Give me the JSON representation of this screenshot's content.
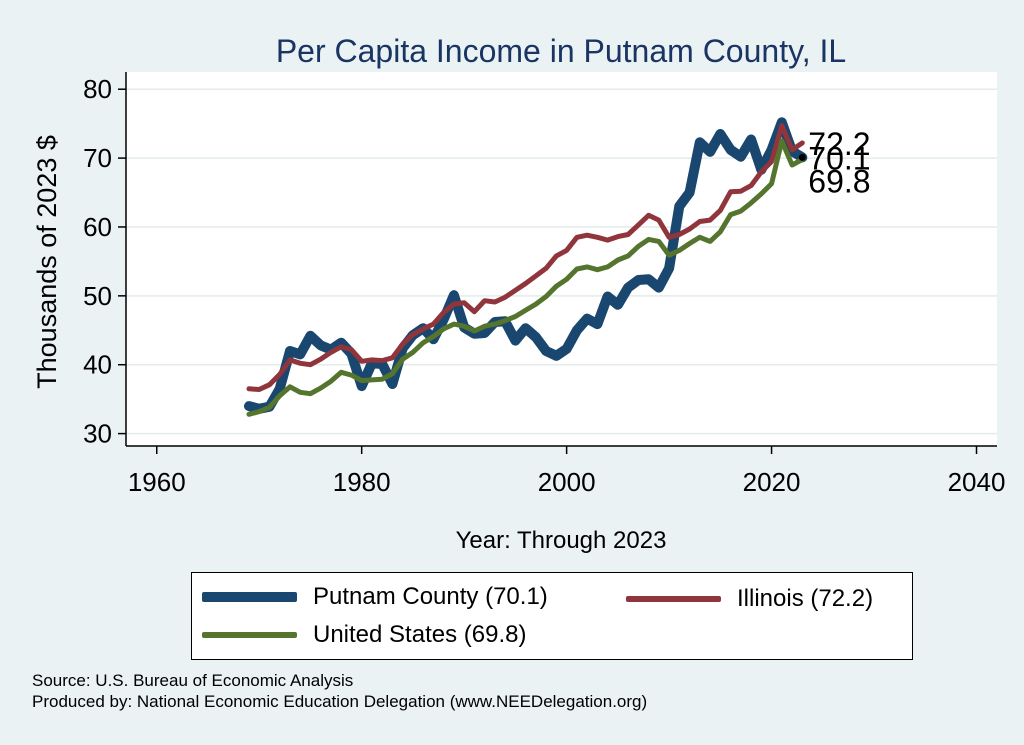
{
  "colors": {
    "background": "#eaf2f3",
    "plot_background": "#ffffff",
    "title": "#1a3464",
    "gridline": "#e3ebec"
  },
  "chart_data": {
    "type": "line",
    "title": "Per Capita Income in Putnam County, IL",
    "xlabel": "Year: Through 2023",
    "ylabel": "Thousands of 2023 $",
    "xlim": [
      1957,
      2042
    ],
    "ylim": [
      28.2,
      82.5
    ],
    "xticks": [
      1960,
      1980,
      2000,
      2020,
      2040
    ],
    "yticks": [
      30,
      40,
      50,
      60,
      70,
      80
    ],
    "grid": true,
    "legend_position": "bottom",
    "x": [
      1969,
      1970,
      1971,
      1972,
      1973,
      1974,
      1975,
      1976,
      1977,
      1978,
      1979,
      1980,
      1981,
      1982,
      1983,
      1984,
      1985,
      1986,
      1987,
      1988,
      1989,
      1990,
      1991,
      1992,
      1993,
      1994,
      1995,
      1996,
      1997,
      1998,
      1999,
      2000,
      2001,
      2002,
      2003,
      2004,
      2005,
      2006,
      2007,
      2008,
      2009,
      2010,
      2011,
      2012,
      2013,
      2014,
      2015,
      2016,
      2017,
      2018,
      2019,
      2020,
      2021,
      2022,
      2023
    ],
    "series": [
      {
        "name": "Putnam County (70.1)",
        "color": "#1a476f",
        "end_label": "70.1",
        "values": [
          34.0,
          33.6,
          33.9,
          36.5,
          42.0,
          41.5,
          44.2,
          42.8,
          42.2,
          43.2,
          41.6,
          36.9,
          40.2,
          40.1,
          37.2,
          42.4,
          44.3,
          45.3,
          43.7,
          46.6,
          50.1,
          45.4,
          44.5,
          44.6,
          46.2,
          46.3,
          43.5,
          45.3,
          44.0,
          42.0,
          41.3,
          42.3,
          45.0,
          46.7,
          45.9,
          49.9,
          48.7,
          51.2,
          52.3,
          52.4,
          51.2,
          54.0,
          63.0,
          65.0,
          72.3,
          70.9,
          73.5,
          71.2,
          70.2,
          72.7,
          68.3,
          71.2,
          75.2,
          71.0,
          70.1
        ]
      },
      {
        "name": "Illinois (72.2)",
        "color": "#90353b",
        "end_label": "72.2",
        "values": [
          36.5,
          36.4,
          37.1,
          38.6,
          40.7,
          40.2,
          40.0,
          40.8,
          41.8,
          42.6,
          42.2,
          40.5,
          40.7,
          40.6,
          41.0,
          43.0,
          44.4,
          45.2,
          45.9,
          47.6,
          48.8,
          49.0,
          47.7,
          49.3,
          49.1,
          49.8,
          50.8,
          51.8,
          52.9,
          54.0,
          55.8,
          56.6,
          58.5,
          58.8,
          58.5,
          58.1,
          58.6,
          58.9,
          60.3,
          61.7,
          61.0,
          58.5,
          58.9,
          59.7,
          60.8,
          61.0,
          62.4,
          65.1,
          65.2,
          66.0,
          68.0,
          69.5,
          74.7,
          71.2,
          72.2
        ]
      },
      {
        "name": "United States (69.8)",
        "color": "#55752f",
        "end_label": "69.8",
        "values": [
          32.8,
          33.2,
          33.8,
          35.5,
          36.8,
          36.0,
          35.8,
          36.6,
          37.6,
          38.9,
          38.5,
          37.7,
          37.8,
          37.9,
          38.7,
          40.8,
          41.8,
          43.2,
          44.1,
          45.2,
          45.9,
          45.6,
          44.9,
          45.6,
          45.9,
          46.4,
          47.0,
          47.9,
          48.8,
          49.9,
          51.4,
          52.4,
          53.9,
          54.2,
          53.8,
          54.2,
          55.2,
          55.8,
          57.2,
          58.2,
          57.9,
          55.9,
          56.6,
          57.6,
          58.5,
          57.9,
          59.3,
          61.8,
          62.3,
          63.5,
          64.8,
          66.3,
          72.5,
          69.0,
          69.8
        ]
      }
    ]
  },
  "source_lines": [
    "Source: U.S. Bureau of Economic Analysis",
    "Produced by: National Economic Education Delegation (www.NEEDelegation.org)"
  ]
}
